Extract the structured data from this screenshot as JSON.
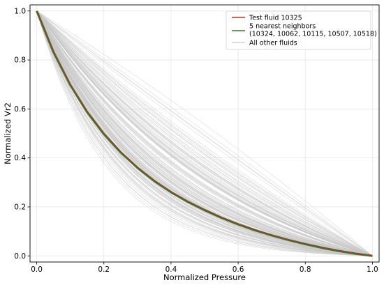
{
  "chart_data": {
    "type": "line",
    "title": "",
    "xlabel": "Normalized Pressure",
    "ylabel": "Normalized Vr2",
    "xlim": [
      -0.02,
      1.02
    ],
    "ylim": [
      -0.025,
      1.025
    ],
    "xticks": [
      0.0,
      0.2,
      0.4,
      0.6,
      0.8,
      1.0
    ],
    "yticks": [
      0.0,
      0.2,
      0.4,
      0.6,
      0.8,
      1.0
    ],
    "xtick_labels": [
      "0.0",
      "0.2",
      "0.4",
      "0.6",
      "0.8",
      "1.0"
    ],
    "ytick_labels": [
      "0.0",
      "0.2",
      "0.4",
      "0.6",
      "0.8",
      "1.0"
    ],
    "grid": true,
    "legend_position": "top-right",
    "series": [
      {
        "name": "Test fluid 10325",
        "color": "#b5341f",
        "x": [
          0,
          0.05,
          0.1,
          0.15,
          0.2,
          0.25,
          0.3,
          0.35,
          0.4,
          0.45,
          0.5,
          0.55,
          0.6,
          0.65,
          0.7,
          0.75,
          0.8,
          0.85,
          0.9,
          0.95,
          1.0
        ],
        "y": [
          1.0,
          0.835,
          0.7,
          0.59,
          0.5,
          0.425,
          0.362,
          0.308,
          0.262,
          0.222,
          0.188,
          0.157,
          0.13,
          0.106,
          0.085,
          0.066,
          0.049,
          0.034,
          0.021,
          0.01,
          0.0
        ]
      },
      {
        "name": "5 nearest neighbors",
        "name_detail": "(10324, 10062, 10115, 10507, 10518)",
        "color": "#2e7d32",
        "x": [
          0,
          0.05,
          0.1,
          0.15,
          0.2,
          0.25,
          0.3,
          0.35,
          0.4,
          0.45,
          0.5,
          0.55,
          0.6,
          0.65,
          0.7,
          0.75,
          0.8,
          0.85,
          0.9,
          0.95,
          1.0
        ],
        "y": [
          1.0,
          0.832,
          0.698,
          0.588,
          0.498,
          0.423,
          0.36,
          0.306,
          0.26,
          0.221,
          0.187,
          0.156,
          0.129,
          0.105,
          0.084,
          0.065,
          0.048,
          0.033,
          0.02,
          0.009,
          0.0
        ]
      },
      {
        "name": "All other fluids",
        "color": "#c8c8c8",
        "curve_family": "exponential-decay-bundle",
        "count": 160,
        "decay_range": [
          -0.5,
          5.0
        ]
      }
    ]
  }
}
